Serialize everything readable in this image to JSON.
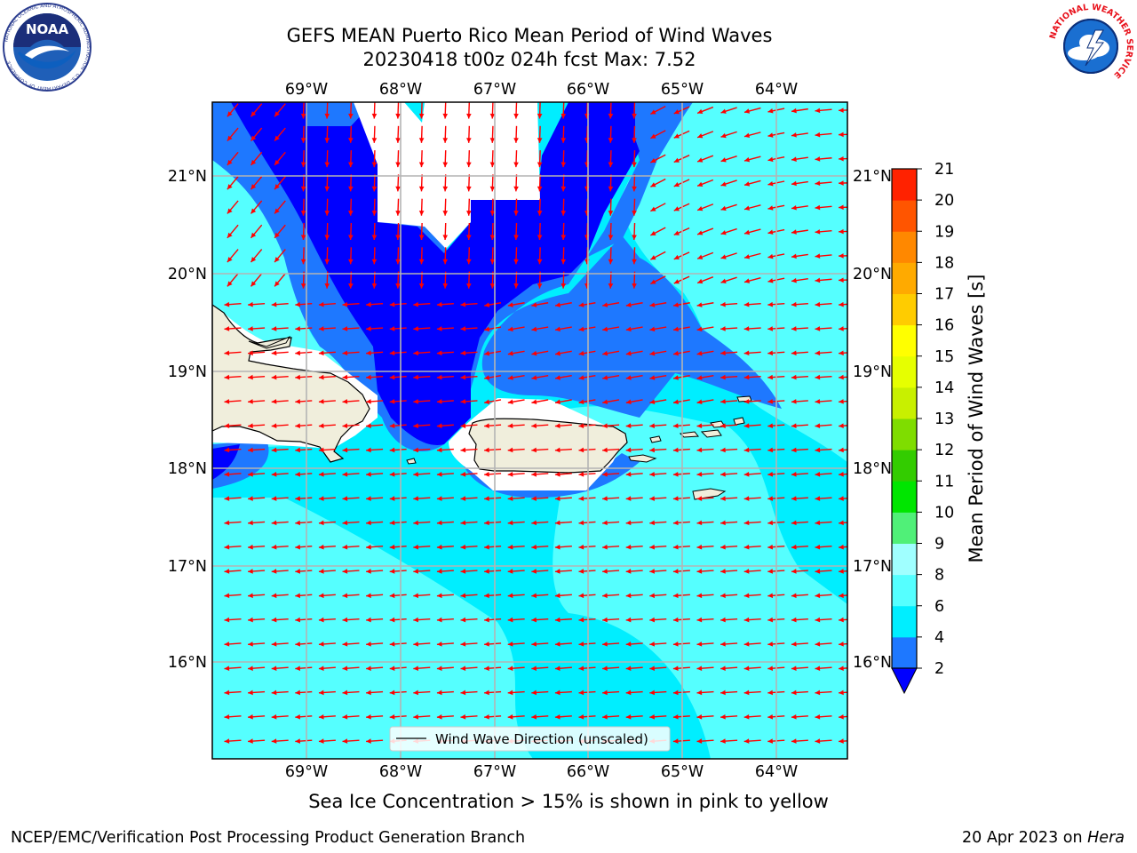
{
  "header": {
    "title_line1": "GEFS MEAN Puerto Rico Mean Period of Wind Waves",
    "title_line2": "20230418 t00z 024h fcst   Max: 7.52",
    "noaa_logo_text": "NOAA",
    "noaa_ring_text": "NATIONAL OCEANIC AND ATMOSPHERIC ADMINISTRATION · U.S. DEPARTMENT OF COMMERCE",
    "nws_ring_text": "NATIONAL WEATHER SERVICE"
  },
  "map": {
    "lon_labels": [
      "69°W",
      "68°W",
      "67°W",
      "66°W",
      "65°W",
      "64°W"
    ],
    "lat_labels": [
      "21°N",
      "20°N",
      "19°N",
      "18°N",
      "17°N",
      "16°N"
    ],
    "legend_label": "Wind Wave Direction (unscaled)",
    "colors": {
      "land": "#f0eedc",
      "arrow": "#ff0000",
      "grid": "#b4b4b4"
    }
  },
  "colorbar": {
    "label": "Mean Period of Wind Waves [s]",
    "ticks": [
      "2",
      "4",
      "6",
      "8",
      "9",
      "10",
      "11",
      "12",
      "13",
      "14",
      "15",
      "16",
      "17",
      "18",
      "19",
      "20",
      "21"
    ],
    "colors": [
      "#1e78ff",
      "#00eeff",
      "#55ffff",
      "#a0ffff",
      "#50f078",
      "#00e600",
      "#33cc00",
      "#7fdd00",
      "#c8f000",
      "#e6ff00",
      "#ffff00",
      "#ffcc00",
      "#ffaa00",
      "#ff8800",
      "#ff5500",
      "#ff2200"
    ],
    "under_color": "#0000ff"
  },
  "footer": {
    "subtitle": "Sea Ice Concentration > 15% is shown in pink to yellow",
    "left": "NCEP/EMC/Verification Post Processing Product Generation Branch",
    "right_date": "20 Apr 2023 on ",
    "right_host": "Hera"
  }
}
